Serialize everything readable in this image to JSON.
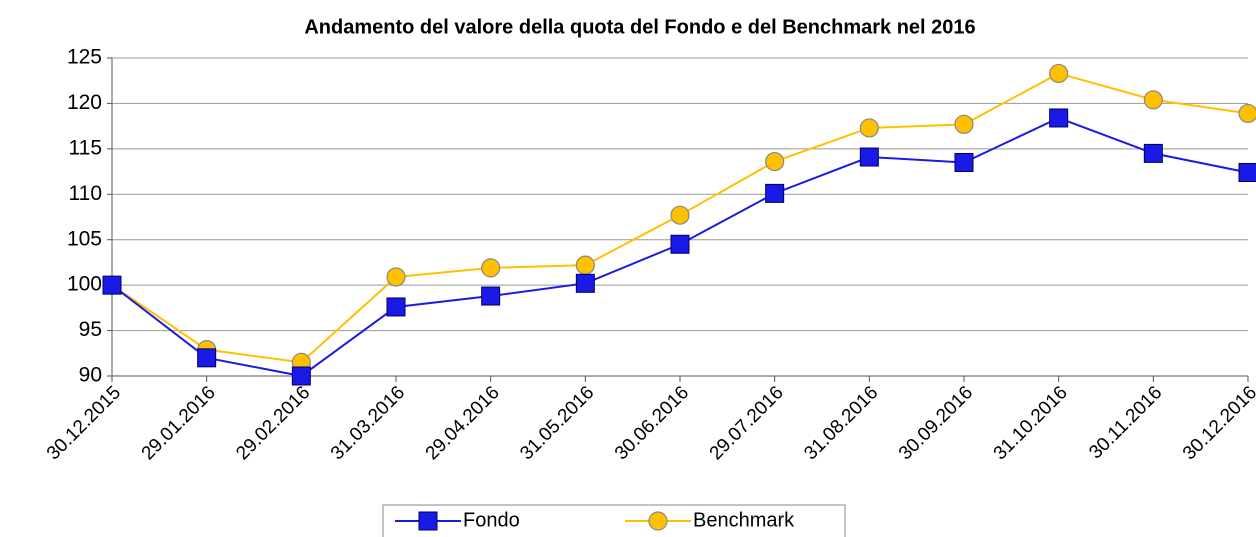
{
  "chart_data": {
    "type": "line",
    "title": "Andamento del valore della quota del Fondo e del Benchmark nel 2016",
    "categories": [
      "30.12.2015",
      "29.01.2016",
      "29.02.2016",
      "31.03.2016",
      "29.04.2016",
      "31.05.2016",
      "30.06.2016",
      "29.07.2016",
      "31.08.2016",
      "30.09.2016",
      "31.10.2016",
      "30.11.2016",
      "30.12.2016"
    ],
    "series": [
      {
        "name": "Fondo",
        "color": "#1a1ae6",
        "marker": "square",
        "values": [
          100,
          92,
          90,
          97.6,
          98.8,
          100.2,
          104.5,
          110.1,
          114.1,
          113.5,
          118.4,
          114.5,
          112.4
        ]
      },
      {
        "name": "Benchmark",
        "color": "#ffc000",
        "marker": "circle",
        "values": [
          100,
          92.9,
          91.5,
          100.9,
          101.9,
          102.2,
          107.7,
          113.6,
          117.3,
          117.7,
          123.3,
          120.4,
          118.9
        ]
      }
    ],
    "ylim": [
      90,
      125
    ],
    "yticks": [
      90,
      95,
      100,
      105,
      110,
      115,
      120,
      125
    ],
    "grid": true,
    "legend": "bottom"
  }
}
